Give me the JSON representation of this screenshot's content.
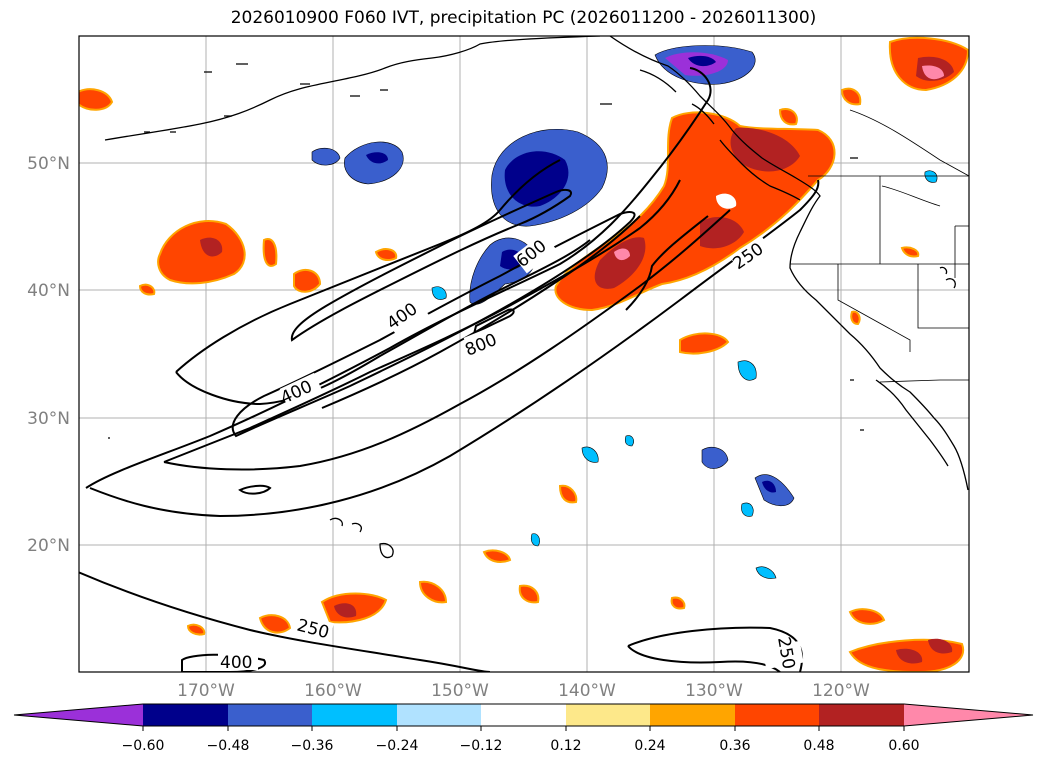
{
  "title": "2026010900 F060 IVT, precipitation PC (2026011200 - 2026011300)",
  "lat_labels": [
    "50°N",
    "40°N",
    "30°N",
    "20°N"
  ],
  "lon_labels": [
    "170°W",
    "160°W",
    "150°W",
    "140°W",
    "130°W",
    "120°W"
  ],
  "ivt_contour_levels": [
    "250",
    "400",
    "600",
    "800"
  ],
  "colorbar": {
    "ticks": [
      "−0.60",
      "−0.48",
      "−0.36",
      "−0.24",
      "−0.12",
      "0.12",
      "0.24",
      "0.36",
      "0.48",
      "0.60"
    ],
    "colors": [
      "#9b30d9",
      "#00008b",
      "#3a5fcd",
      "#00bfff",
      "#b0e2ff",
      "#ffffff",
      "#fde88a",
      "#ffa500",
      "#ff4500",
      "#b22222",
      "#ff88aa"
    ]
  }
}
